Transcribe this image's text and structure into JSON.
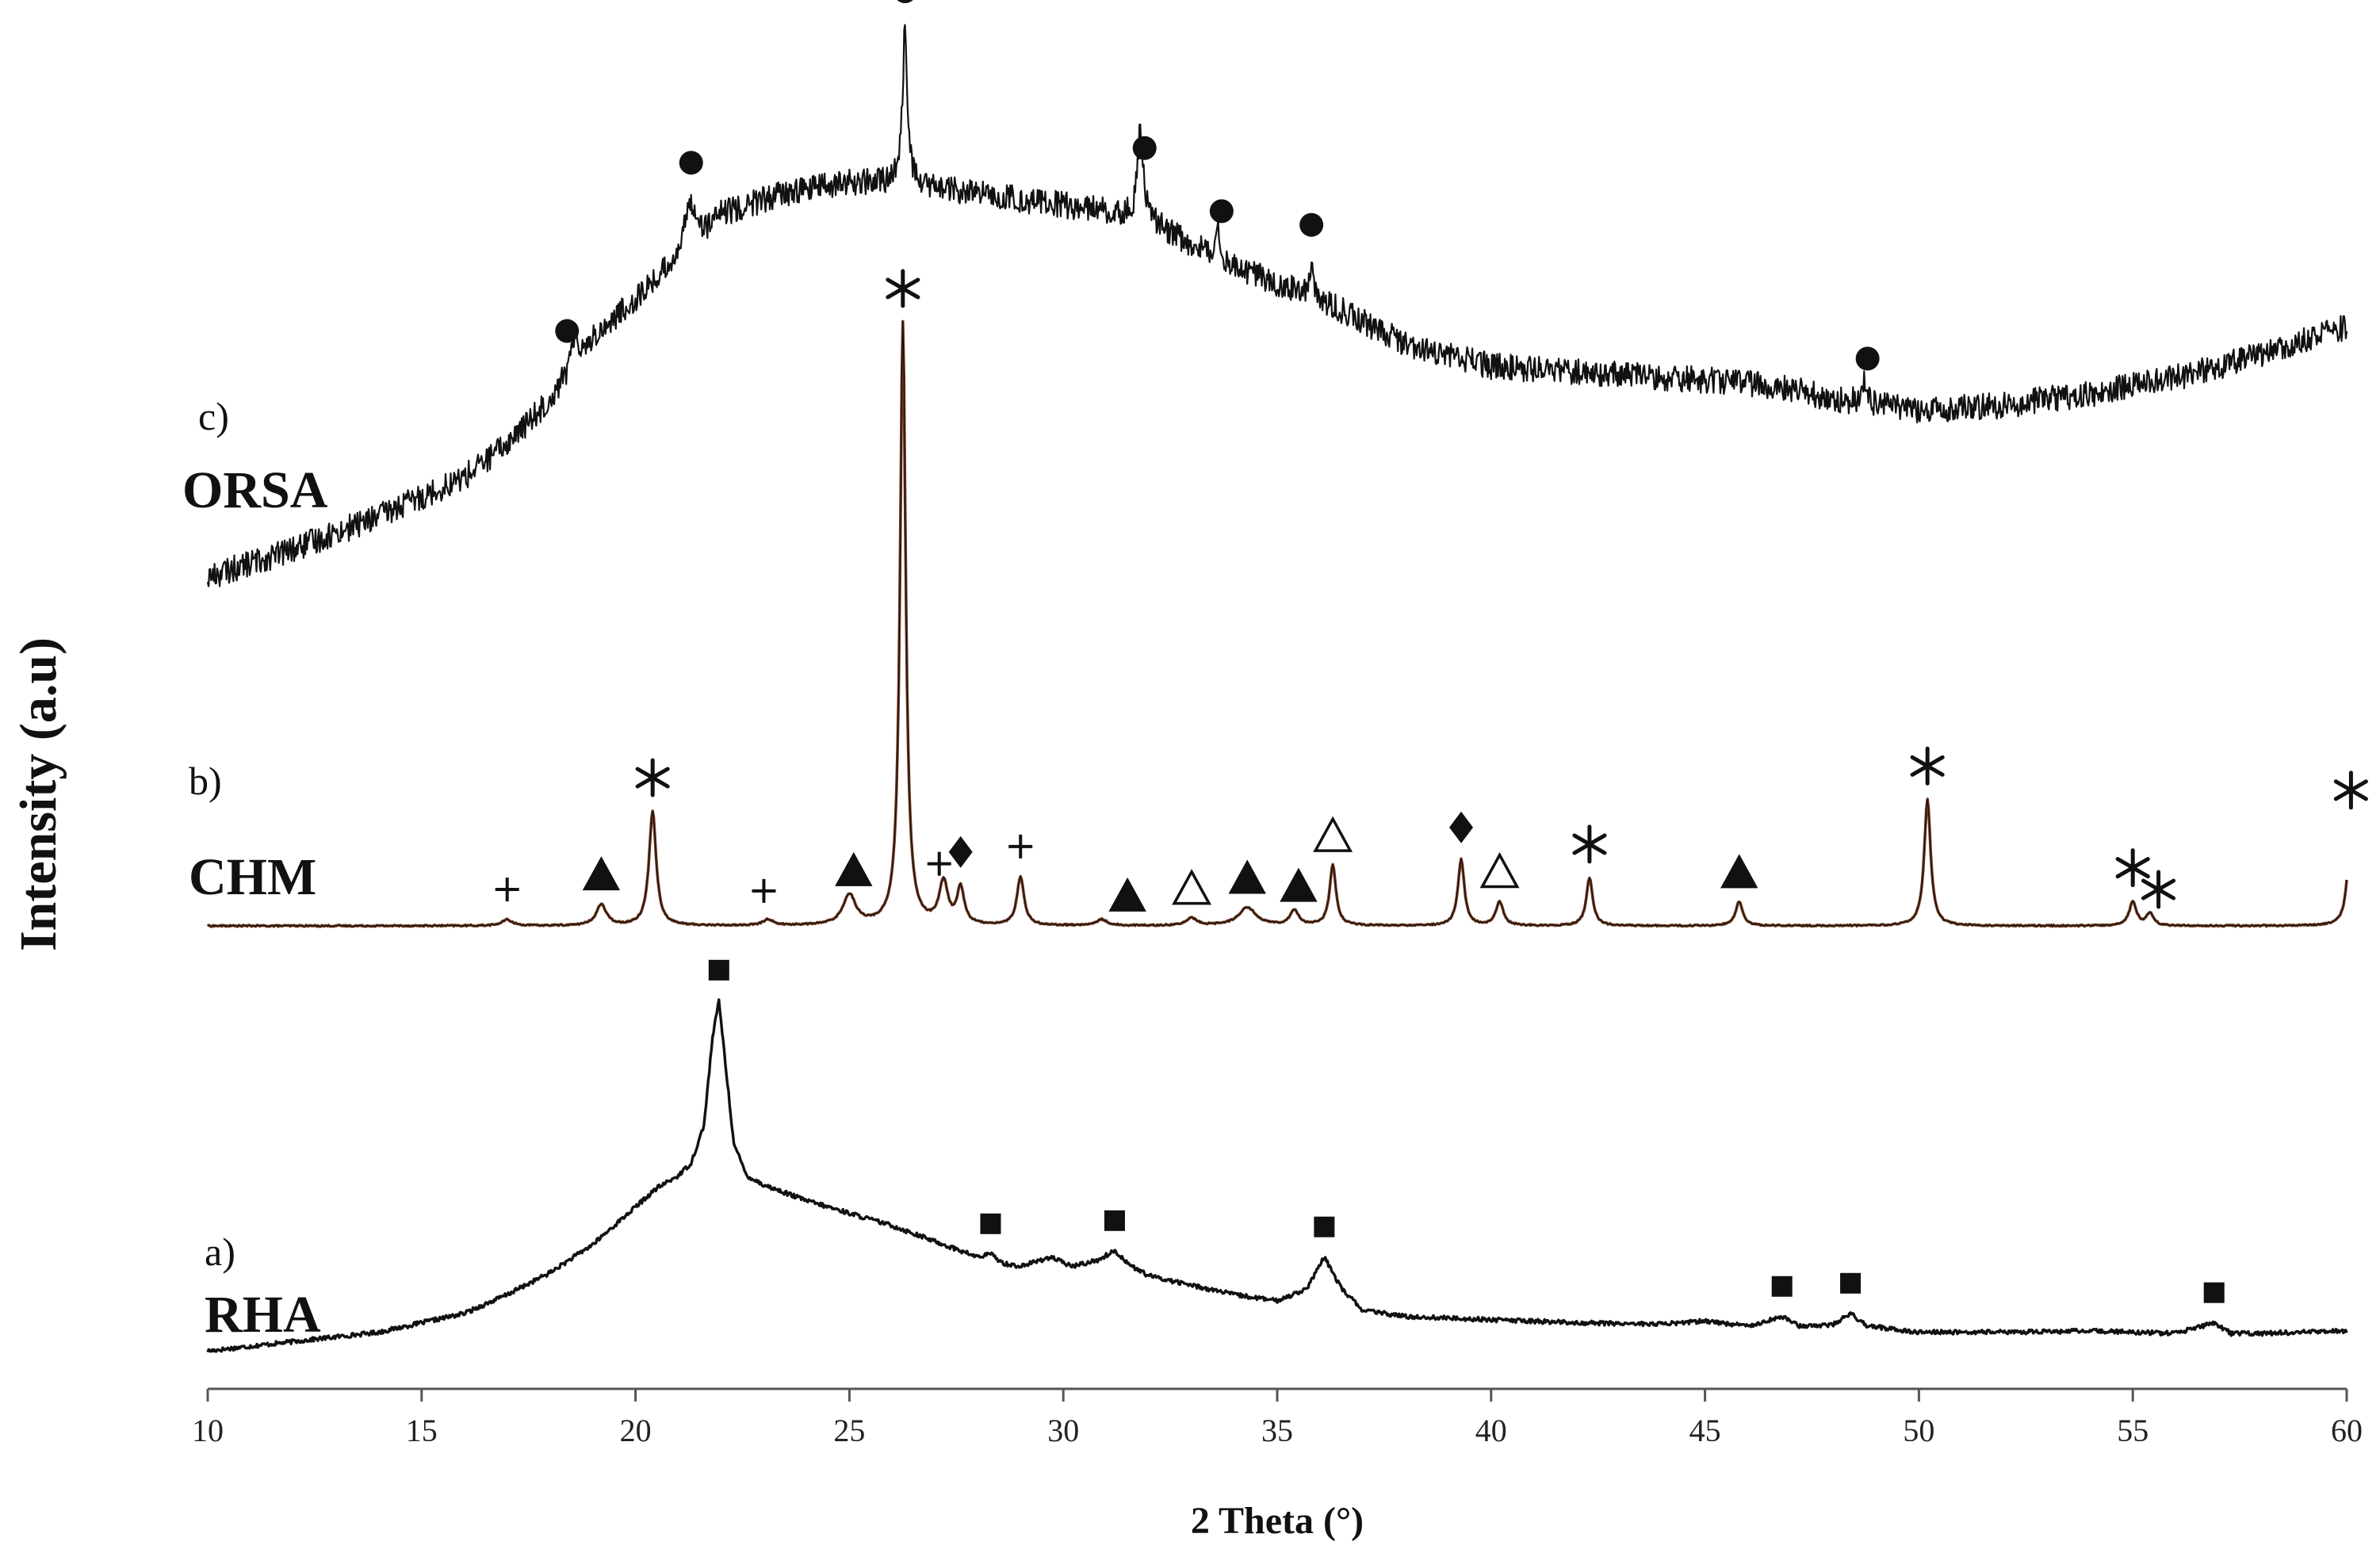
{
  "chart_data": {
    "type": "line",
    "title": "",
    "xlabel": "2 Theta (°)",
    "ylabel": "Intensity (a.u)",
    "xlim": [
      10,
      60
    ],
    "xticks": [
      10,
      15,
      20,
      25,
      30,
      35,
      40,
      45,
      50,
      55,
      60
    ],
    "ylim": [
      0,
      100
    ],
    "grid": false,
    "legend": "none",
    "series": [
      {
        "id": "rha",
        "tag": "a)",
        "name": "RHA",
        "color": "#111111",
        "noise": 0.35,
        "x": [
          10,
          12,
          14,
          16,
          17,
          18,
          19,
          20,
          20.5,
          21,
          21.3,
          21.6,
          21.8,
          21.95,
          22.1,
          22.3,
          22.6,
          23,
          24,
          25,
          26,
          27,
          28,
          28.3,
          28.6,
          29,
          29.7,
          30.2,
          30.8,
          31.2,
          31.6,
          32,
          33,
          34,
          35,
          35.7,
          36.1,
          36.5,
          37,
          38,
          40,
          42,
          44,
          45,
          46,
          46.8,
          47.2,
          48,
          48.4,
          48.8,
          50,
          52,
          54,
          56,
          56.9,
          57.3,
          58,
          60
        ],
        "y": [
          2,
          3.5,
          5,
          8,
          11,
          14.5,
          19,
          25,
          28,
          30,
          32,
          38,
          52,
          58,
          48,
          35,
          30,
          28.5,
          26,
          24,
          22,
          19.5,
          17,
          17.5,
          16,
          15.5,
          17,
          15.5,
          16.5,
          18,
          15.5,
          14,
          12.5,
          11,
          10,
          12,
          17,
          12,
          8.5,
          7.5,
          7,
          6.5,
          6.3,
          6.8,
          6,
          7.5,
          6,
          6.2,
          8,
          6,
          5,
          5,
          5.2,
          4.8,
          6.5,
          4.8,
          4.8,
          5.2
        ],
        "markers": {
          "symbol": "square",
          "x": [
            21.95,
            28.3,
            31.2,
            36.1,
            46.8,
            48.4,
            56.9
          ]
        }
      },
      {
        "id": "chm",
        "tag": "b)",
        "name": "CHM",
        "color": "#6b3a22",
        "noise": 0.12,
        "peaks": [
          {
            "x": 17.0,
            "h": 1.0,
            "w": 0.15
          },
          {
            "x": 19.2,
            "h": 3.5,
            "w": 0.14
          },
          {
            "x": 20.4,
            "h": 19,
            "w": 0.1
          },
          {
            "x": 23.1,
            "h": 1.0,
            "w": 0.14
          },
          {
            "x": 25.0,
            "h": 5.0,
            "w": 0.18
          },
          {
            "x": 26.25,
            "h": 100,
            "w": 0.08
          },
          {
            "x": 27.2,
            "h": 7.0,
            "w": 0.12
          },
          {
            "x": 27.6,
            "h": 6.0,
            "w": 0.1
          },
          {
            "x": 29.0,
            "h": 8.0,
            "w": 0.1
          },
          {
            "x": 30.9,
            "h": 1.0,
            "w": 0.15
          },
          {
            "x": 33.0,
            "h": 1.2,
            "w": 0.15
          },
          {
            "x": 34.3,
            "h": 3.0,
            "w": 0.25
          },
          {
            "x": 35.4,
            "h": 2.5,
            "w": 0.12
          },
          {
            "x": 36.3,
            "h": 10,
            "w": 0.09
          },
          {
            "x": 39.3,
            "h": 11,
            "w": 0.09
          },
          {
            "x": 40.2,
            "h": 4.0,
            "w": 0.1
          },
          {
            "x": 42.3,
            "h": 8.0,
            "w": 0.09
          },
          {
            "x": 45.8,
            "h": 4.0,
            "w": 0.1
          },
          {
            "x": 50.2,
            "h": 21,
            "w": 0.09
          },
          {
            "x": 55.0,
            "h": 4.0,
            "w": 0.1
          },
          {
            "x": 55.4,
            "h": 2.0,
            "w": 0.1
          },
          {
            "x": 60.1,
            "h": 17,
            "w": 0.09
          }
        ],
        "markers": [
          {
            "symbol": "+",
            "x": 17.0
          },
          {
            "symbol": "filled-triangle",
            "x": 19.2
          },
          {
            "symbol": "*",
            "x": 20.4
          },
          {
            "symbol": "+",
            "x": 23.0
          },
          {
            "symbol": "filled-triangle",
            "x": 25.1
          },
          {
            "symbol": "*",
            "x": 26.25
          },
          {
            "symbol": "+",
            "x": 27.1
          },
          {
            "symbol": "diamond",
            "x": 27.6
          },
          {
            "symbol": "+",
            "x": 29.0
          },
          {
            "symbol": "filled-triangle",
            "x": 31.5
          },
          {
            "symbol": "open-triangle",
            "x": 33.0
          },
          {
            "symbol": "filled-triangle",
            "x": 34.3
          },
          {
            "symbol": "filled-triangle",
            "x": 35.5
          },
          {
            "symbol": "open-triangle",
            "x": 36.3
          },
          {
            "symbol": "diamond",
            "x": 39.3
          },
          {
            "symbol": "open-triangle",
            "x": 40.2
          },
          {
            "symbol": "*",
            "x": 42.3
          },
          {
            "symbol": "filled-triangle",
            "x": 45.8
          },
          {
            "symbol": "*",
            "x": 50.2
          },
          {
            "symbol": "*",
            "x": 55.0
          },
          {
            "symbol": "*",
            "x": 55.6
          },
          {
            "symbol": "*",
            "x": 60.1
          }
        ]
      },
      {
        "id": "orsa",
        "tag": "c)",
        "name": "ORSA",
        "color": "#111111",
        "noise": 2.4,
        "x": [
          10,
          12,
          14,
          16,
          17,
          18,
          18.5,
          19,
          20,
          21,
          21.5,
          22,
          23,
          24,
          25,
          26,
          27,
          28,
          29,
          30,
          31,
          32,
          33,
          34,
          35,
          36,
          37,
          38,
          39,
          40,
          42,
          44,
          46,
          47,
          48,
          49,
          50,
          52,
          54,
          56,
          58,
          60
        ],
        "y": [
          0,
          5,
          11,
          18,
          24,
          32,
          38,
          43,
          50,
          57,
          60,
          65,
          68,
          70,
          71,
          71,
          70,
          69,
          68,
          67,
          66,
          64,
          60,
          56,
          53,
          50,
          46,
          42,
          40,
          38,
          37,
          36,
          35,
          34,
          32,
          31,
          30,
          31,
          33,
          36,
          40,
          45
        ],
        "peaks": [
          {
            "x": 18.6,
            "h": 6,
            "w": 0.07
          },
          {
            "x": 21.3,
            "h": 9,
            "w": 0.18
          },
          {
            "x": 26.3,
            "h": 28,
            "w": 0.07
          },
          {
            "x": 31.8,
            "h": 16,
            "w": 0.08
          },
          {
            "x": 33.6,
            "h": 7,
            "w": 0.06
          },
          {
            "x": 35.8,
            "h": 6,
            "w": 0.06
          },
          {
            "x": 48.7,
            "h": 4,
            "w": 0.07
          }
        ],
        "markers": {
          "symbol": "circle",
          "x": [
            18.4,
            21.3,
            26.3,
            31.9,
            33.7,
            35.8,
            48.8
          ]
        }
      }
    ]
  }
}
